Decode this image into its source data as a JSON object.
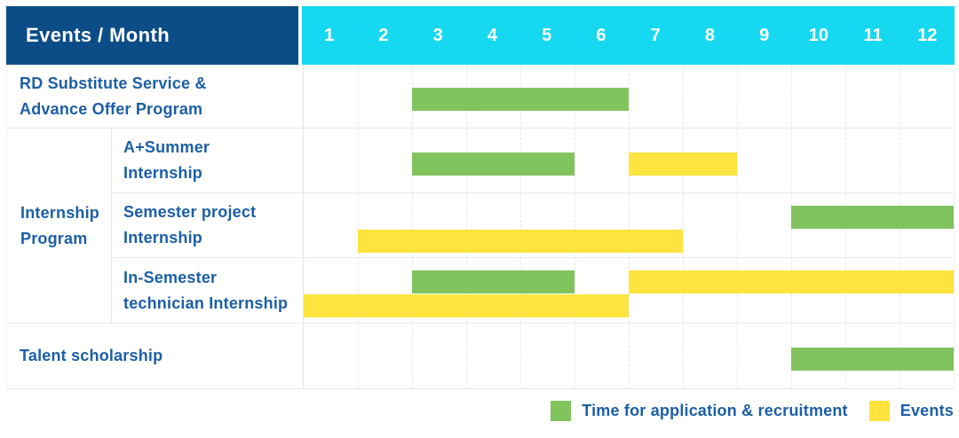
{
  "header": {
    "title": "Events / Month",
    "months": [
      "1",
      "2",
      "3",
      "4",
      "5",
      "6",
      "7",
      "8",
      "9",
      "10",
      "11",
      "12"
    ]
  },
  "colors": {
    "header_bg": "#0d4d87",
    "months_bg": "#17d8f1",
    "header_text": "#ffffff",
    "label_text": "#1c5fa6",
    "grid_line": "#e8e8e8",
    "application": "#81c45e",
    "events": "#ffe33e"
  },
  "legend": [
    {
      "key": "application",
      "label": "Time for application & recruitment",
      "color": "#81c45e"
    },
    {
      "key": "events",
      "label": "Events",
      "color": "#ffe33e"
    }
  ],
  "chart_data": {
    "type": "gantt",
    "x_axis": {
      "label": "Month",
      "ticks": [
        1,
        2,
        3,
        4,
        5,
        6,
        7,
        8,
        9,
        10,
        11,
        12
      ]
    },
    "series_legend": [
      {
        "name": "Time for application & recruitment",
        "color": "#81c45e"
      },
      {
        "name": "Events",
        "color": "#ffe33e"
      }
    ],
    "group_label": {
      "text": "Internship Program",
      "lines": [
        "Internship",
        "Program"
      ],
      "spans_row_keys": [
        "a-summer-internship",
        "semester-project-internship",
        "in-semester-technician-internship"
      ]
    },
    "rows": [
      {
        "key": "rd-substitute-service-advance-offer-program",
        "group": "",
        "label": "RD Substitute Service & Advance Offer Program",
        "label_lines": [
          "RD Substitute Service &",
          "Advance Offer Program"
        ],
        "lines": 1,
        "bars": [
          {
            "series": "application",
            "start_month": 3,
            "end_month": 6,
            "line": 0
          }
        ]
      },
      {
        "key": "a-summer-internship",
        "group": "Internship Program",
        "label": "A+Summer Internship",
        "label_lines": [
          "A+Summer",
          "Internship"
        ],
        "lines": 1,
        "bars": [
          {
            "series": "application",
            "start_month": 3,
            "end_month": 5,
            "line": 0
          },
          {
            "series": "events",
            "start_month": 7,
            "end_month": 8,
            "line": 0
          }
        ]
      },
      {
        "key": "semester-project-internship",
        "group": "Internship Program",
        "label": "Semester project Internship",
        "label_lines": [
          "Semester project",
          "Internship"
        ],
        "lines": 2,
        "bars": [
          {
            "series": "application",
            "start_month": 10,
            "end_month": 12,
            "line": 0
          },
          {
            "series": "events",
            "start_month": 2,
            "end_month": 7,
            "line": 1
          }
        ]
      },
      {
        "key": "in-semester-technician-internship",
        "group": "Internship Program",
        "label": "In-Semester technician Internship",
        "label_lines": [
          "In-Semester",
          "technician Internship"
        ],
        "lines": 2,
        "bars": [
          {
            "series": "application",
            "start_month": 3,
            "end_month": 5,
            "line": 0
          },
          {
            "series": "events",
            "start_month": 7,
            "end_month": 12,
            "line": 0
          },
          {
            "series": "events",
            "start_month": 1,
            "end_month": 6,
            "line": 1
          }
        ]
      },
      {
        "key": "talent-scholarship",
        "group": "",
        "label": "Talent scholarship",
        "label_lines": [
          "Talent scholarship"
        ],
        "lines": 1,
        "bars": [
          {
            "series": "application",
            "start_month": 10,
            "end_month": 12,
            "line": 0
          }
        ]
      }
    ]
  }
}
